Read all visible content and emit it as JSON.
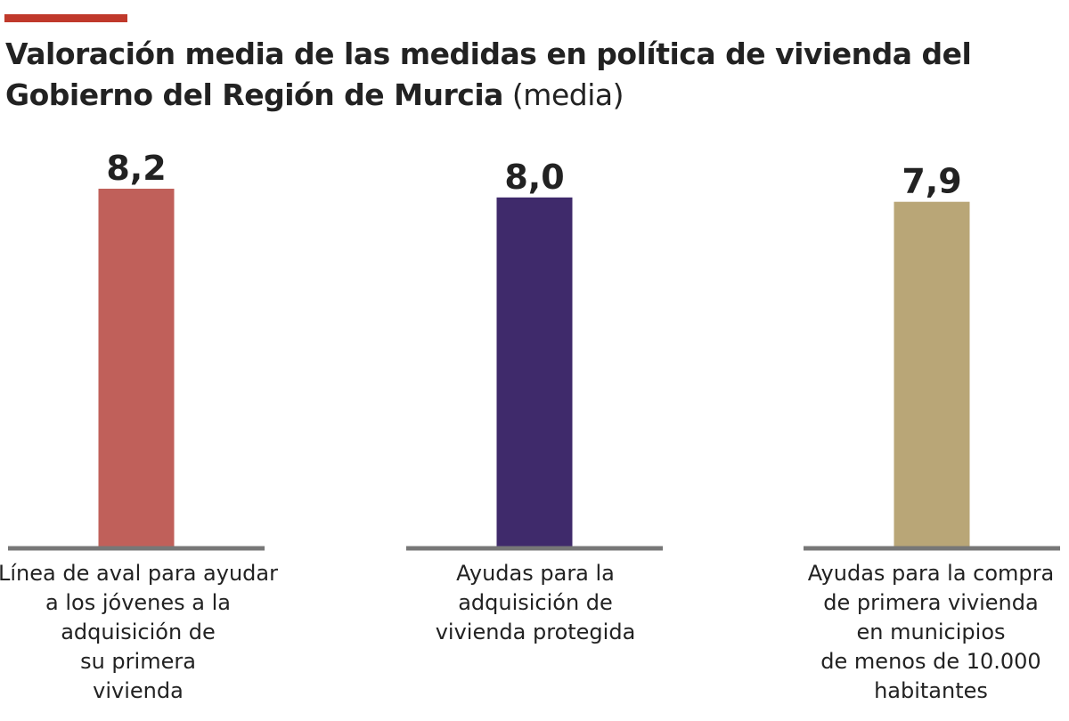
{
  "header": {
    "title_bold": "Valoración media de las medidas en política de vivienda del Gobierno del Región de Murcia",
    "title_light": " (media)",
    "accent_color": "#c0392b"
  },
  "chart_data": {
    "type": "bar",
    "title": "Valoración media de las medidas en política de vivienda del Gobierno del Región de Murcia (media)",
    "xlabel": "",
    "ylabel": "",
    "grid": false,
    "legend": "none",
    "ylim": [
      0,
      8.2
    ],
    "categories": [
      "Línea de aval para ayudar a los jóvenes a la adquisición de su primera vivienda",
      "Ayudas para la adquisición de vivienda protegida",
      "Ayudas para la compra de primera vivienda en municipios de menos de 10.000 habitantes"
    ],
    "category_label_lines": [
      "Línea de aval para ayudar\na los jóvenes a la\nadquisición de\nsu primera\nvivienda",
      "Ayudas para la\nadquisición de\nvivienda protegida",
      "Ayudas para la compra\nde primera vivienda\nen municipios\nde menos de 10.000\nhabitantes"
    ],
    "values": [
      8.2,
      8.0,
      7.9
    ],
    "value_labels": [
      "8,2",
      "8,0",
      "7,9"
    ],
    "colors": [
      "#c0605a",
      "#3f2a6b",
      "#b9a677"
    ],
    "baseline_color": "#777777"
  }
}
